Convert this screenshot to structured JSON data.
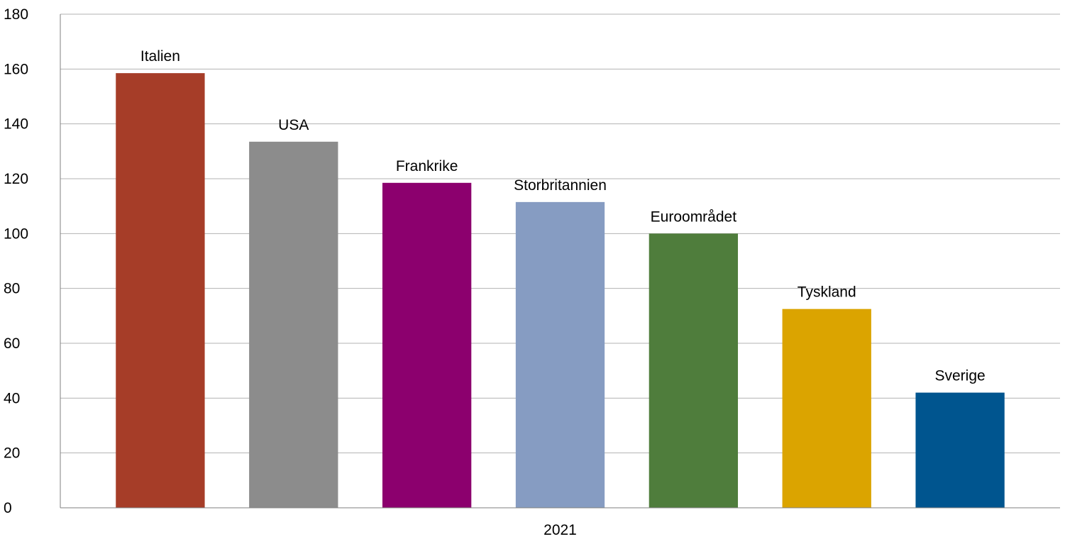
{
  "chart_data": {
    "type": "bar",
    "x_category": "2021",
    "categories": [
      "Italien",
      "USA",
      "Frankrike",
      "Storbritannien",
      "Euroområdet",
      "Tyskland",
      "Sverige"
    ],
    "values": [
      158.5,
      133.5,
      118.5,
      111.5,
      100,
      72.5,
      42
    ],
    "colors": [
      "#a63d28",
      "#8c8c8c",
      "#8c006e",
      "#869cc2",
      "#4f7d3c",
      "#dba400",
      "#00558f"
    ],
    "ylim": [
      0,
      180
    ],
    "yticks": [
      0,
      20,
      40,
      60,
      80,
      100,
      120,
      140,
      160,
      180
    ],
    "grid": true,
    "legend": "none",
    "gridline_color": "#b3b3b3",
    "axis_color": "#7f7f7f"
  }
}
